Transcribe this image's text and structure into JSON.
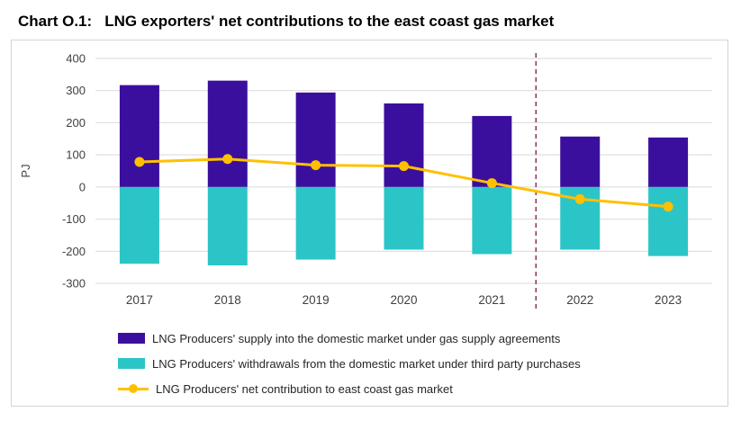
{
  "title": {
    "prefix": "Chart O.1:",
    "text": "LNG exporters' net contributions to the east coast gas market"
  },
  "chart_data": {
    "type": "bar",
    "categories": [
      "2017",
      "2018",
      "2019",
      "2020",
      "2021",
      "2022",
      "2023"
    ],
    "series": [
      {
        "name": "LNG Producers' supply into the domestic market under gas supply agreements",
        "type": "bar",
        "color": "#3b0f9e",
        "values": [
          317,
          331,
          294,
          260,
          221,
          157,
          154
        ]
      },
      {
        "name": "LNG Producers' withdrawals from the domestic market under third party purchases",
        "type": "bar",
        "color": "#2cc5c7",
        "values": [
          -239,
          -244,
          -226,
          -195,
          -209,
          -195,
          -215
        ]
      },
      {
        "name": "LNG Producers' net contribution to east coast gas market",
        "type": "line",
        "color": "#ffc000",
        "values": [
          78,
          87,
          68,
          65,
          12,
          -38,
          -61
        ]
      }
    ],
    "ylabel": "PJ",
    "ylim": [
      -300,
      400
    ],
    "ytick_step": 100,
    "grid": true,
    "legend_position": "bottom",
    "divider_after_category": "2021",
    "divider_color": "#8e2f5c",
    "grid_color": "#d9d9d9",
    "axis_text_color": "#404040"
  }
}
